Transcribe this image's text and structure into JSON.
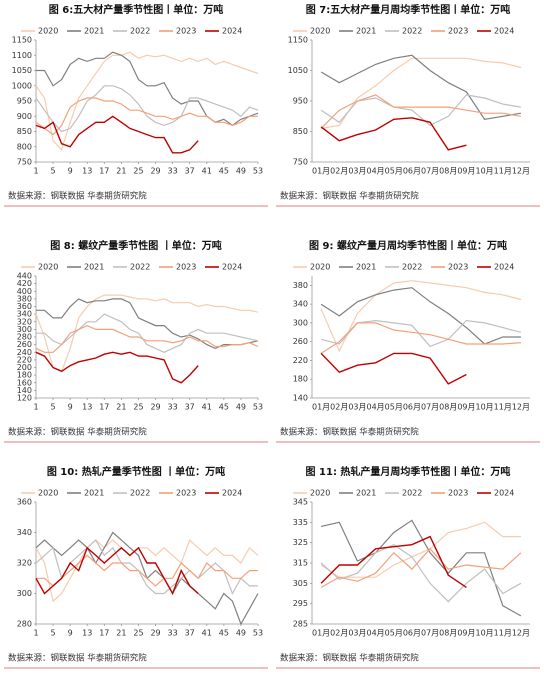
{
  "chart_data": [
    {
      "type": "line",
      "title": "图 6:五大材产量季节性图丨单位：万吨",
      "source": "数据来源：钢联数据 华泰期货研究院",
      "x": [
        1,
        3,
        5,
        7,
        9,
        11,
        13,
        15,
        17,
        19,
        21,
        23,
        25,
        27,
        29,
        31,
        33,
        35,
        37,
        39,
        41,
        43,
        45,
        47,
        49,
        51,
        53
      ],
      "xlim": [
        1,
        53
      ],
      "xticks": [
        1,
        5,
        9,
        13,
        17,
        21,
        25,
        29,
        33,
        37,
        41,
        45,
        49,
        53
      ],
      "ylim": [
        750,
        1150
      ],
      "yticks": [
        750,
        800,
        850,
        900,
        950,
        1000,
        1050,
        1100,
        1150
      ],
      "series": [
        {
          "name": "2020",
          "color": "#f8cbad",
          "values": [
            1000,
            960,
            820,
            790,
            880,
            960,
            1000,
            1040,
            1080,
            1100,
            1100,
            1110,
            1090,
            1100,
            1095,
            1100,
            1090,
            1080,
            1090,
            1080,
            1090,
            1070,
            1080,
            1070,
            1060,
            1050,
            1040
          ]
        },
        {
          "name": "2021",
          "color": "#7f7f7f",
          "values": [
            1050,
            1050,
            1000,
            1020,
            1070,
            1090,
            1080,
            1090,
            1090,
            1110,
            1100,
            1080,
            1020,
            1000,
            1000,
            1010,
            960,
            940,
            950,
            950,
            900,
            880,
            890,
            870,
            890,
            900,
            910
          ]
        },
        {
          "name": "2022",
          "color": "#bfbfbf",
          "values": [
            960,
            920,
            880,
            850,
            860,
            900,
            950,
            970,
            1000,
            1000,
            990,
            970,
            940,
            900,
            880,
            870,
            880,
            900,
            960,
            960,
            950,
            940,
            930,
            920,
            900,
            930,
            920
          ]
        },
        {
          "name": "2023",
          "color": "#f4a07a",
          "values": [
            880,
            860,
            840,
            870,
            930,
            950,
            960,
            960,
            950,
            950,
            940,
            920,
            920,
            910,
            900,
            900,
            890,
            900,
            910,
            900,
            900,
            880,
            880,
            870,
            880,
            900,
            900
          ]
        },
        {
          "name": "2024",
          "color": "#c00000",
          "values": [
            870,
            860,
            880,
            810,
            800,
            840,
            860,
            880,
            880,
            900,
            880,
            860,
            850,
            840,
            830,
            830,
            780,
            780,
            790,
            820,
            null,
            null,
            null,
            null,
            null,
            null,
            null
          ]
        }
      ]
    },
    {
      "type": "line",
      "title": "图 7:五大材产量月周均季节性图丨单位：万吨",
      "source": "数据来源：钢联数据 华泰期货研究院",
      "categories": [
        "01月",
        "02月",
        "03月",
        "04月",
        "05月",
        "06月",
        "07月",
        "08月",
        "09月",
        "10月",
        "11月",
        "12月"
      ],
      "ylim": [
        750,
        1150
      ],
      "yticks": [
        750,
        850,
        950,
        1050,
        1150
      ],
      "series": [
        {
          "name": "2020",
          "color": "#f8cbad",
          "values": [
            860,
            870,
            960,
            1000,
            1050,
            1090,
            1090,
            1090,
            1090,
            1080,
            1075,
            1060
          ]
        },
        {
          "name": "2021",
          "color": "#7f7f7f",
          "values": [
            1045,
            1010,
            1040,
            1070,
            1090,
            1100,
            1050,
            1010,
            980,
            890,
            900,
            910
          ]
        },
        {
          "name": "2022",
          "color": "#bfbfbf",
          "values": [
            920,
            880,
            950,
            960,
            930,
            920,
            870,
            900,
            970,
            960,
            940,
            930
          ]
        },
        {
          "name": "2023",
          "color": "#f4a07a",
          "values": [
            860,
            920,
            950,
            970,
            930,
            930,
            930,
            930,
            920,
            910,
            910,
            900
          ]
        },
        {
          "name": "2024",
          "color": "#c00000",
          "values": [
            865,
            820,
            840,
            855,
            890,
            895,
            880,
            790,
            805,
            null,
            null,
            null
          ]
        }
      ]
    },
    {
      "type": "line",
      "title": "图 8: 螺纹产量季节性图 丨单位：万吨",
      "source": "数据来源：钢联数据 华泰期货研究院",
      "x": [
        1,
        3,
        5,
        7,
        9,
        11,
        13,
        15,
        17,
        19,
        21,
        23,
        25,
        27,
        29,
        31,
        33,
        35,
        37,
        39,
        41,
        43,
        45,
        47,
        49,
        51,
        53
      ],
      "xlim": [
        1,
        53
      ],
      "xticks": [
        1,
        5,
        9,
        13,
        17,
        21,
        25,
        29,
        33,
        37,
        41,
        45,
        49,
        53
      ],
      "ylim": [
        120,
        440
      ],
      "yticks": [
        120,
        140,
        160,
        180,
        200,
        220,
        240,
        260,
        280,
        300,
        320,
        340,
        360,
        380,
        400,
        420,
        440
      ],
      "series": [
        {
          "name": "2020",
          "color": "#f8cbad",
          "values": [
            340,
            280,
            200,
            190,
            250,
            330,
            360,
            380,
            390,
            390,
            390,
            385,
            380,
            380,
            375,
            380,
            370,
            370,
            370,
            360,
            365,
            360,
            360,
            355,
            350,
            350,
            345
          ]
        },
        {
          "name": "2021",
          "color": "#7f7f7f",
          "values": [
            350,
            350,
            330,
            330,
            360,
            380,
            370,
            375,
            375,
            380,
            380,
            370,
            330,
            320,
            310,
            310,
            290,
            280,
            285,
            275,
            260,
            250,
            260,
            260,
            260,
            265,
            270
          ]
        },
        {
          "name": "2022",
          "color": "#bfbfbf",
          "values": [
            290,
            290,
            270,
            260,
            280,
            300,
            320,
            320,
            340,
            330,
            320,
            300,
            290,
            260,
            250,
            240,
            250,
            260,
            290,
            300,
            290,
            290,
            290,
            285,
            280,
            275,
            270
          ]
        },
        {
          "name": "2023",
          "color": "#f4a07a",
          "values": [
            250,
            240,
            240,
            260,
            290,
            300,
            310,
            300,
            300,
            300,
            290,
            280,
            280,
            270,
            270,
            270,
            265,
            270,
            280,
            270,
            270,
            255,
            255,
            260,
            260,
            265,
            255
          ]
        },
        {
          "name": "2024",
          "color": "#c00000",
          "values": [
            240,
            230,
            200,
            190,
            205,
            215,
            220,
            225,
            235,
            240,
            235,
            240,
            230,
            230,
            225,
            220,
            170,
            160,
            180,
            205,
            null,
            null,
            null,
            null,
            null,
            null,
            null
          ]
        }
      ]
    },
    {
      "type": "line",
      "title": "图 9: 螺纹产量月周均季节性图丨单位：万吨",
      "source": "数据来源：钢联数据 华泰期货研究院",
      "categories": [
        "01月",
        "02月",
        "03月",
        "04月",
        "05月",
        "06月",
        "07月",
        "08月",
        "09月",
        "10月",
        "11月",
        "12月"
      ],
      "ylim": [
        140,
        400
      ],
      "yticks": [
        140,
        180,
        220,
        260,
        300,
        340,
        380
      ],
      "series": [
        {
          "name": "2020",
          "color": "#f8cbad",
          "values": [
            330,
            240,
            320,
            360,
            385,
            390,
            385,
            380,
            375,
            365,
            360,
            350
          ]
        },
        {
          "name": "2021",
          "color": "#7f7f7f",
          "values": [
            340,
            315,
            345,
            360,
            370,
            375,
            345,
            320,
            290,
            255,
            270,
            270
          ]
        },
        {
          "name": "2022",
          "color": "#bfbfbf",
          "values": [
            265,
            255,
            300,
            305,
            300,
            295,
            250,
            265,
            305,
            300,
            290,
            280
          ]
        },
        {
          "name": "2023",
          "color": "#f4a07a",
          "values": [
            235,
            260,
            300,
            300,
            285,
            280,
            275,
            265,
            255,
            255,
            255,
            258
          ]
        },
        {
          "name": "2024",
          "color": "#c00000",
          "values": [
            235,
            195,
            210,
            215,
            235,
            235,
            225,
            170,
            190,
            null,
            null,
            null
          ]
        }
      ]
    },
    {
      "type": "line",
      "title": "图 10: 热轧产量季节性图 丨单位：万吨",
      "source": "数据来源：钢联数据 华泰期货研究院",
      "x": [
        1,
        3,
        5,
        7,
        9,
        11,
        13,
        15,
        17,
        19,
        21,
        23,
        25,
        27,
        29,
        31,
        33,
        35,
        37,
        39,
        41,
        43,
        45,
        47,
        49,
        51,
        53
      ],
      "xlim": [
        1,
        53
      ],
      "xticks": [
        1,
        5,
        9,
        13,
        17,
        21,
        25,
        29,
        33,
        37,
        41,
        45,
        49,
        53
      ],
      "ylim": [
        280,
        360
      ],
      "yticks": [
        280,
        300,
        320,
        340,
        360
      ],
      "series": [
        {
          "name": "2020",
          "color": "#f8cbad",
          "values": [
            330,
            320,
            295,
            300,
            310,
            320,
            330,
            335,
            330,
            335,
            330,
            325,
            330,
            330,
            325,
            330,
            325,
            320,
            335,
            330,
            325,
            330,
            325,
            325,
            320,
            330,
            325
          ]
        },
        {
          "name": "2021",
          "color": "#7f7f7f",
          "values": [
            330,
            335,
            330,
            325,
            330,
            335,
            330,
            320,
            330,
            340,
            335,
            330,
            325,
            310,
            315,
            310,
            300,
            310,
            305,
            300,
            295,
            290,
            300,
            295,
            280,
            290,
            300
          ]
        },
        {
          "name": "2022",
          "color": "#bfbfbf",
          "values": [
            320,
            325,
            330,
            310,
            320,
            325,
            330,
            335,
            325,
            330,
            320,
            320,
            315,
            305,
            300,
            300,
            305,
            310,
            315,
            310,
            315,
            320,
            315,
            300,
            310,
            305,
            305
          ]
        },
        {
          "name": "2023",
          "color": "#f4a07a",
          "values": [
            310,
            310,
            305,
            310,
            315,
            320,
            325,
            320,
            315,
            320,
            320,
            315,
            315,
            310,
            305,
            310,
            310,
            320,
            315,
            310,
            320,
            315,
            315,
            310,
            310,
            315,
            315
          ]
        },
        {
          "name": "2024",
          "color": "#c00000",
          "values": [
            310,
            300,
            305,
            310,
            320,
            315,
            330,
            325,
            320,
            325,
            330,
            325,
            330,
            320,
            320,
            310,
            300,
            315,
            305,
            300,
            null,
            null,
            null,
            null,
            null,
            null,
            null
          ]
        }
      ]
    },
    {
      "type": "line",
      "title": "图 11: 热轧产量月周均季节性图丨单位：万吨",
      "source": "数据来源：钢联数据 华泰期货研究院",
      "categories": [
        "01月",
        "02月",
        "03月",
        "04月",
        "05月",
        "06月",
        "07月",
        "08月",
        "09月",
        "10月",
        "11月",
        "12月"
      ],
      "ylim": [
        285,
        345
      ],
      "yticks": [
        285,
        295,
        305,
        315,
        325,
        335,
        345
      ],
      "series": [
        {
          "name": "2020",
          "color": "#f8cbad",
          "values": [
            314,
            308,
            308,
            308,
            314,
            318,
            322,
            330,
            332,
            335,
            328,
            328
          ]
        },
        {
          "name": "2021",
          "color": "#7f7f7f",
          "values": [
            333,
            335,
            316,
            320,
            330,
            336,
            320,
            310,
            320,
            320,
            294,
            289
          ]
        },
        {
          "name": "2022",
          "color": "#bfbfbf",
          "values": [
            315,
            307,
            310,
            320,
            324,
            318,
            305,
            296,
            305,
            312,
            300,
            305
          ]
        },
        {
          "name": "2023",
          "color": "#f4a07a",
          "values": [
            303,
            308,
            306,
            310,
            320,
            312,
            322,
            312,
            314,
            313,
            312,
            320
          ]
        },
        {
          "name": "2024",
          "color": "#c00000",
          "values": [
            305,
            314,
            314,
            322,
            323,
            324,
            328,
            309,
            303,
            null,
            null,
            null
          ]
        }
      ]
    }
  ]
}
